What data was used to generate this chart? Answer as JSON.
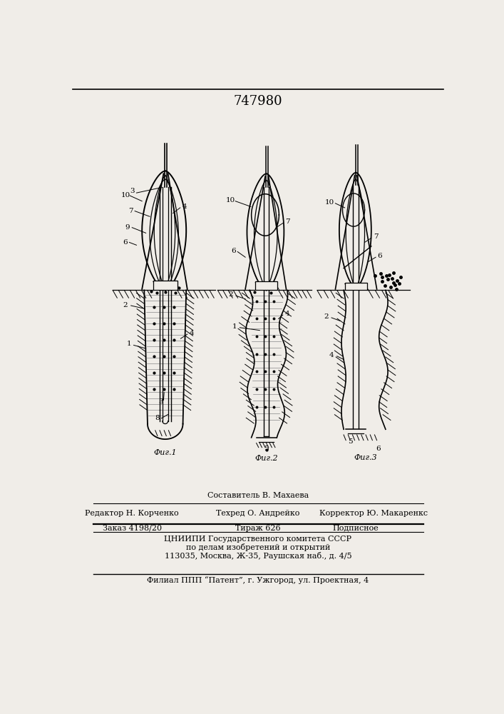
{
  "patent_number": "747980",
  "bg_color": "#f0ede8",
  "fig_labels": [
    "Фиг.1",
    "Фиг.2",
    "Фиг.3"
  ],
  "footer_line1_center": "Составитель В. Махаева",
  "footer_line2_left": "Редактор Н. Корченко",
  "footer_line2_center": "Техред О. Андрейко",
  "footer_line2_right": "Корректор Ю. Макаренкс",
  "footer_line3_left": "Заказ 4198/20",
  "footer_line3_center": "Тираж 626",
  "footer_line3_right": "Подписное",
  "footer_line4": "ЦНИИПИ Государственного комитета СССР",
  "footer_line5": "по делам изобретений и открытий",
  "footer_line6": "113035, Москва, Ж-35, Раушская наб., д. 4/5",
  "footer_line7": "Филиал ППП “Патент”, г. Ужгород, ул. Проектная, 4"
}
